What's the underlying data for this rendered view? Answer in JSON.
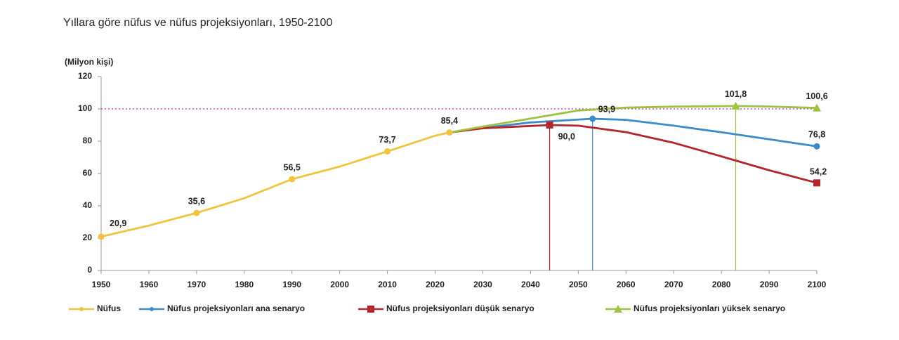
{
  "chart_data": {
    "type": "line",
    "title": "Yıllara göre nüfus ve nüfus projeksiyonları, 1950-2100",
    "y_label": "(Milyon kişi)",
    "xlim": [
      1950,
      2100
    ],
    "xticks": [
      1950,
      1960,
      1970,
      1980,
      1990,
      2000,
      2010,
      2020,
      2030,
      2040,
      2050,
      2060,
      2070,
      2080,
      2090,
      2100
    ],
    "ylim": [
      0,
      120
    ],
    "yticks": [
      0,
      20,
      40,
      60,
      80,
      100,
      120
    ],
    "reference_line": {
      "value": 100,
      "color": "#cc44cc"
    },
    "legend": "bottom",
    "series": [
      {
        "name": "Nüfus",
        "color": "#f0c43f",
        "marker": "circle",
        "x": [
          1950,
          1960,
          1970,
          1980,
          1990,
          2000,
          2010,
          2020,
          2023
        ],
        "values": [
          20.9,
          27.8,
          35.6,
          44.7,
          56.5,
          64.3,
          73.7,
          83.4,
          85.4
        ],
        "value_labels": [
          "20,9",
          null,
          "35,6",
          null,
          "56,5",
          null,
          "73,7",
          null,
          "85,4"
        ]
      },
      {
        "name": "Nüfus projeksiyonları ana senaryo",
        "color": "#3b8cc8",
        "marker": "circle",
        "x": [
          2023,
          2030,
          2040,
          2053,
          2060,
          2070,
          2080,
          2090,
          2100
        ],
        "values": [
          85.4,
          88.2,
          91.6,
          93.9,
          93.2,
          89.6,
          85.5,
          81.2,
          76.8
        ],
        "value_labels": [
          null,
          null,
          null,
          "93,9",
          null,
          null,
          null,
          null,
          "76,8"
        ]
      },
      {
        "name": "Nüfus projeksiyonları düşük senaryo",
        "color": "#b5252c",
        "marker": "square",
        "x": [
          2023,
          2030,
          2044,
          2050,
          2060,
          2070,
          2080,
          2090,
          2100
        ],
        "values": [
          85.4,
          88.0,
          90.0,
          89.6,
          85.6,
          79.0,
          70.6,
          62.0,
          54.2
        ],
        "value_labels": [
          null,
          null,
          "90,0",
          null,
          null,
          null,
          null,
          null,
          "54,2"
        ]
      },
      {
        "name": "Nüfus projeksiyonları yüksek senaryo",
        "color": "#9cc43e",
        "marker": "triangle",
        "x": [
          2023,
          2030,
          2040,
          2050,
          2060,
          2070,
          2083,
          2090,
          2100
        ],
        "values": [
          85.4,
          89.0,
          94.0,
          99.0,
          100.8,
          101.4,
          101.8,
          101.5,
          100.6
        ],
        "value_labels": [
          null,
          null,
          null,
          null,
          null,
          null,
          "101,8",
          null,
          "100,6"
        ]
      }
    ]
  }
}
